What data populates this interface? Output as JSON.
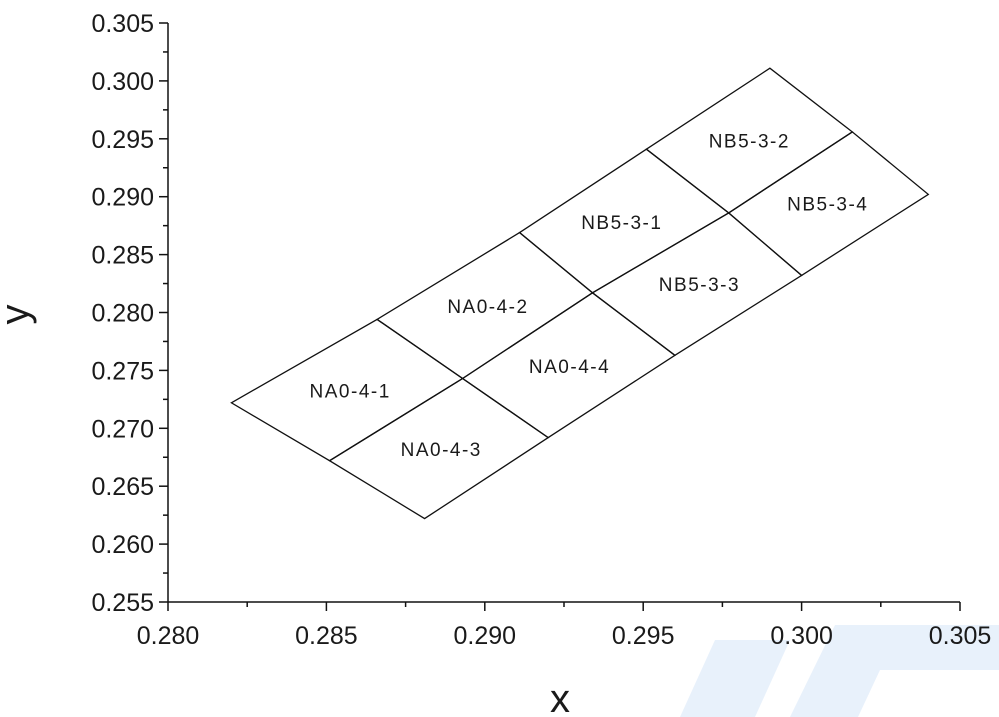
{
  "chart_data": {
    "type": "diagram",
    "title": "",
    "xlabel": "x",
    "ylabel": "y",
    "xlim": [
      0.28,
      0.305
    ],
    "ylim": [
      0.255,
      0.305
    ],
    "xticks": [
      "0.280",
      "0.285",
      "0.290",
      "0.295",
      "0.300",
      "0.305"
    ],
    "yticks": [
      "0.255",
      "0.260",
      "0.265",
      "0.270",
      "0.275",
      "0.280",
      "0.285",
      "0.290",
      "0.295",
      "0.300",
      "0.305"
    ],
    "grid": false,
    "bins": [
      {
        "label": "NA0-4-1",
        "corners": [
          [
            0.282,
            0.2722
          ],
          [
            0.2866,
            0.2794
          ],
          [
            0.2893,
            0.2743
          ],
          [
            0.2851,
            0.2672
          ]
        ]
      },
      {
        "label": "NA0-4-2",
        "corners": [
          [
            0.2866,
            0.2794
          ],
          [
            0.2911,
            0.2869
          ],
          [
            0.2934,
            0.2817
          ],
          [
            0.2893,
            0.2743
          ]
        ]
      },
      {
        "label": "NA0-4-3",
        "corners": [
          [
            0.2851,
            0.2672
          ],
          [
            0.2893,
            0.2743
          ],
          [
            0.292,
            0.2692
          ],
          [
            0.2881,
            0.2622
          ]
        ]
      },
      {
        "label": "NA0-4-4",
        "corners": [
          [
            0.2893,
            0.2743
          ],
          [
            0.2934,
            0.2817
          ],
          [
            0.296,
            0.2763
          ],
          [
            0.292,
            0.2692
          ]
        ]
      },
      {
        "label": "NB5-3-1",
        "corners": [
          [
            0.2911,
            0.2869
          ],
          [
            0.2951,
            0.2941
          ],
          [
            0.2977,
            0.2886
          ],
          [
            0.2934,
            0.2817
          ]
        ]
      },
      {
        "label": "NB5-3-2",
        "corners": [
          [
            0.2951,
            0.2941
          ],
          [
            0.299,
            0.3011
          ],
          [
            0.3016,
            0.2956
          ],
          [
            0.2977,
            0.2886
          ]
        ]
      },
      {
        "label": "NB5-3-3",
        "corners": [
          [
            0.2934,
            0.2817
          ],
          [
            0.2977,
            0.2886
          ],
          [
            0.3,
            0.2832
          ],
          [
            0.296,
            0.2763
          ]
        ]
      },
      {
        "label": "NB5-3-4",
        "corners": [
          [
            0.2977,
            0.2886
          ],
          [
            0.3016,
            0.2956
          ],
          [
            0.304,
            0.2902
          ],
          [
            0.3,
            0.2832
          ]
        ]
      }
    ]
  }
}
